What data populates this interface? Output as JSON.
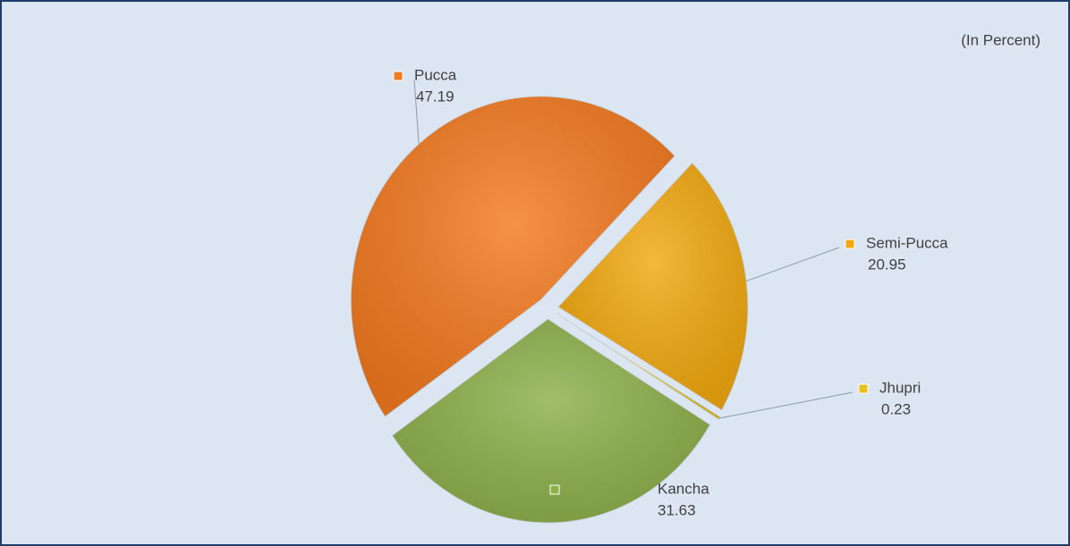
{
  "chart_data": {
    "type": "pie",
    "subtitle": "(In Percent)",
    "categories": [
      "Semi-Pucca",
      "Jhupri",
      "Kancha",
      "Pucca"
    ],
    "values": [
      20.95,
      0.23,
      31.63,
      47.19
    ],
    "colors": [
      "#f2a90f",
      "#e8c21a",
      "#8db04a",
      "#f47a20"
    ]
  }
}
